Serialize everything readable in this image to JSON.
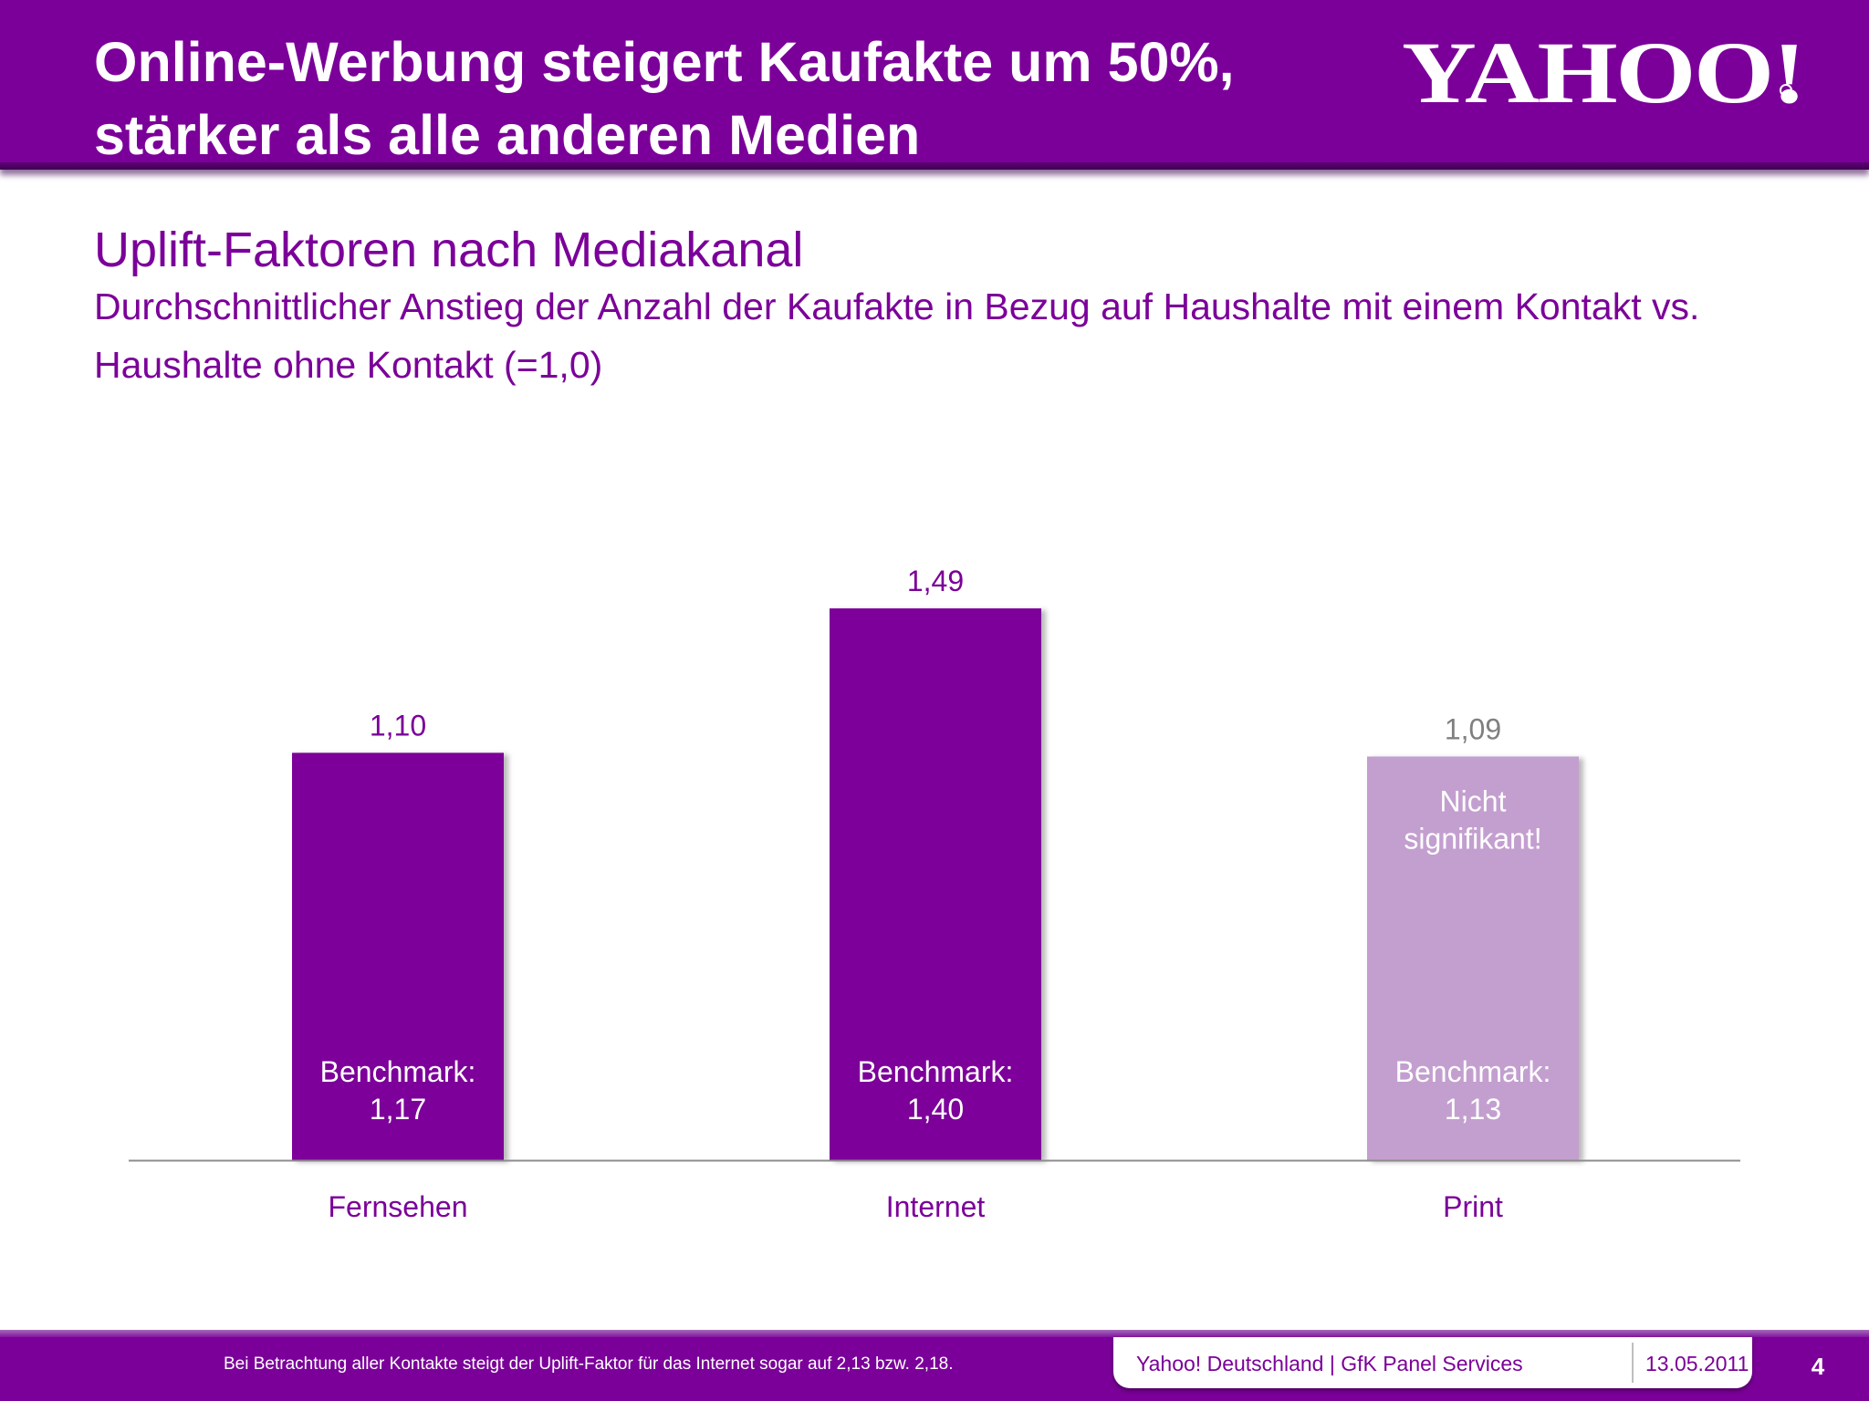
{
  "header": {
    "title_line1": "Online-Werbung steigert Kaufakte um 50%,",
    "title_line2": "stärker als alle anderen Medien",
    "logo_text": "YAHOO!"
  },
  "subtitle": "Uplift-Faktoren nach Mediakanal",
  "description": "Durchschnittlicher Anstieg der Anzahl der Kaufakte in Bezug auf Haushalte mit einem Kontakt vs. Haushalte ohne Kontakt (=1,0)",
  "colors": {
    "brand_purple": "#7b0099",
    "muted_purple": "#c39fcf",
    "muted_label": "#808080",
    "axis": "#8c8c8c"
  },
  "chart_data": {
    "type": "bar",
    "title": "",
    "xlabel": "",
    "ylabel": "",
    "categories": [
      "Fernsehen",
      "Internet",
      "Print"
    ],
    "values": [
      1.1,
      1.49,
      1.09
    ],
    "value_labels": [
      "1,10",
      "1,49",
      "1,09"
    ],
    "benchmark_label": "Benchmark:",
    "benchmarks": [
      "1,17",
      "1,40",
      "1,13"
    ],
    "benchmark_values": [
      1.17,
      1.4,
      1.13
    ],
    "annotations": [
      {
        "category": "Print",
        "lines": [
          "Nicht",
          "signifikant!"
        ]
      }
    ],
    "significant": [
      true,
      true,
      false
    ],
    "baseline": 0,
    "ylim": [
      0,
      1.6
    ],
    "grid": false,
    "legend": "none"
  },
  "footer": {
    "footnote": "Bei Betrachtung aller Kontakte steigt der Uplift-Faktor für das Internet sogar auf 2,13 bzw. 2,18.",
    "source": "Yahoo! Deutschland | GfK Panel Services",
    "date": "13.05.2011",
    "page_number": "4"
  }
}
